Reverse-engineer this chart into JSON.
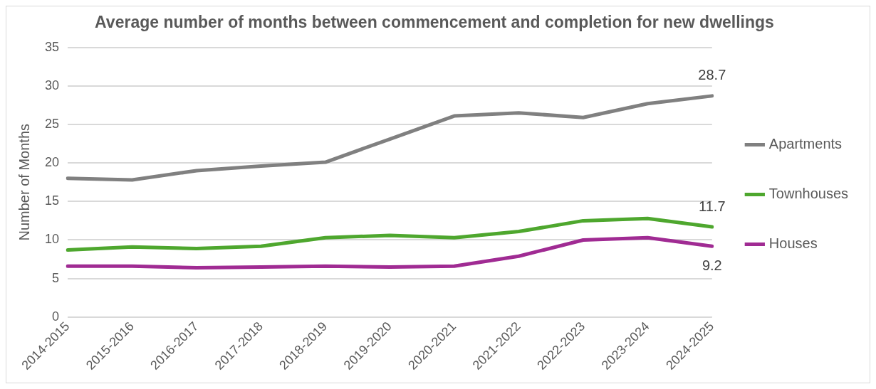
{
  "chart_data": {
    "type": "line",
    "title": "Average number of months between commencement and completion for new dwellings",
    "ylabel": "Number of Months",
    "categories": [
      "2014-2015",
      "2015-2016",
      "2016-2017",
      "2017-2018",
      "2018-2019",
      "2019-2020",
      "2020-2021",
      "2021-2022",
      "2022-2023",
      "2023-2024",
      "2024-2025"
    ],
    "series": [
      {
        "name": "Apartments",
        "color": "#808080",
        "values": [
          18.0,
          17.8,
          19.0,
          19.6,
          20.1,
          23.1,
          26.1,
          26.5,
          25.9,
          27.7,
          28.7
        ],
        "value_labels": [
          null,
          null,
          null,
          null,
          null,
          null,
          null,
          null,
          null,
          null,
          "28.7"
        ]
      },
      {
        "name": "Townhouses",
        "color": "#4ea72e",
        "values": [
          8.7,
          9.1,
          8.9,
          9.2,
          10.3,
          10.6,
          10.3,
          11.1,
          12.5,
          12.8,
          11.7
        ],
        "value_labels": [
          null,
          null,
          null,
          null,
          null,
          null,
          null,
          null,
          null,
          null,
          "11.7"
        ]
      },
      {
        "name": "Houses",
        "color": "#a02b93",
        "values": [
          6.6,
          6.6,
          6.4,
          6.5,
          6.6,
          6.5,
          6.6,
          7.9,
          10.0,
          10.3,
          9.2
        ],
        "value_labels": [
          null,
          null,
          null,
          null,
          null,
          null,
          null,
          null,
          null,
          null,
          "9.2"
        ]
      }
    ],
    "ylim": [
      0,
      35
    ],
    "yticks": [
      0,
      5,
      10,
      15,
      20,
      25,
      30,
      35
    ],
    "grid": "y",
    "legend": "right",
    "marker": "none",
    "line_style": "solid"
  }
}
